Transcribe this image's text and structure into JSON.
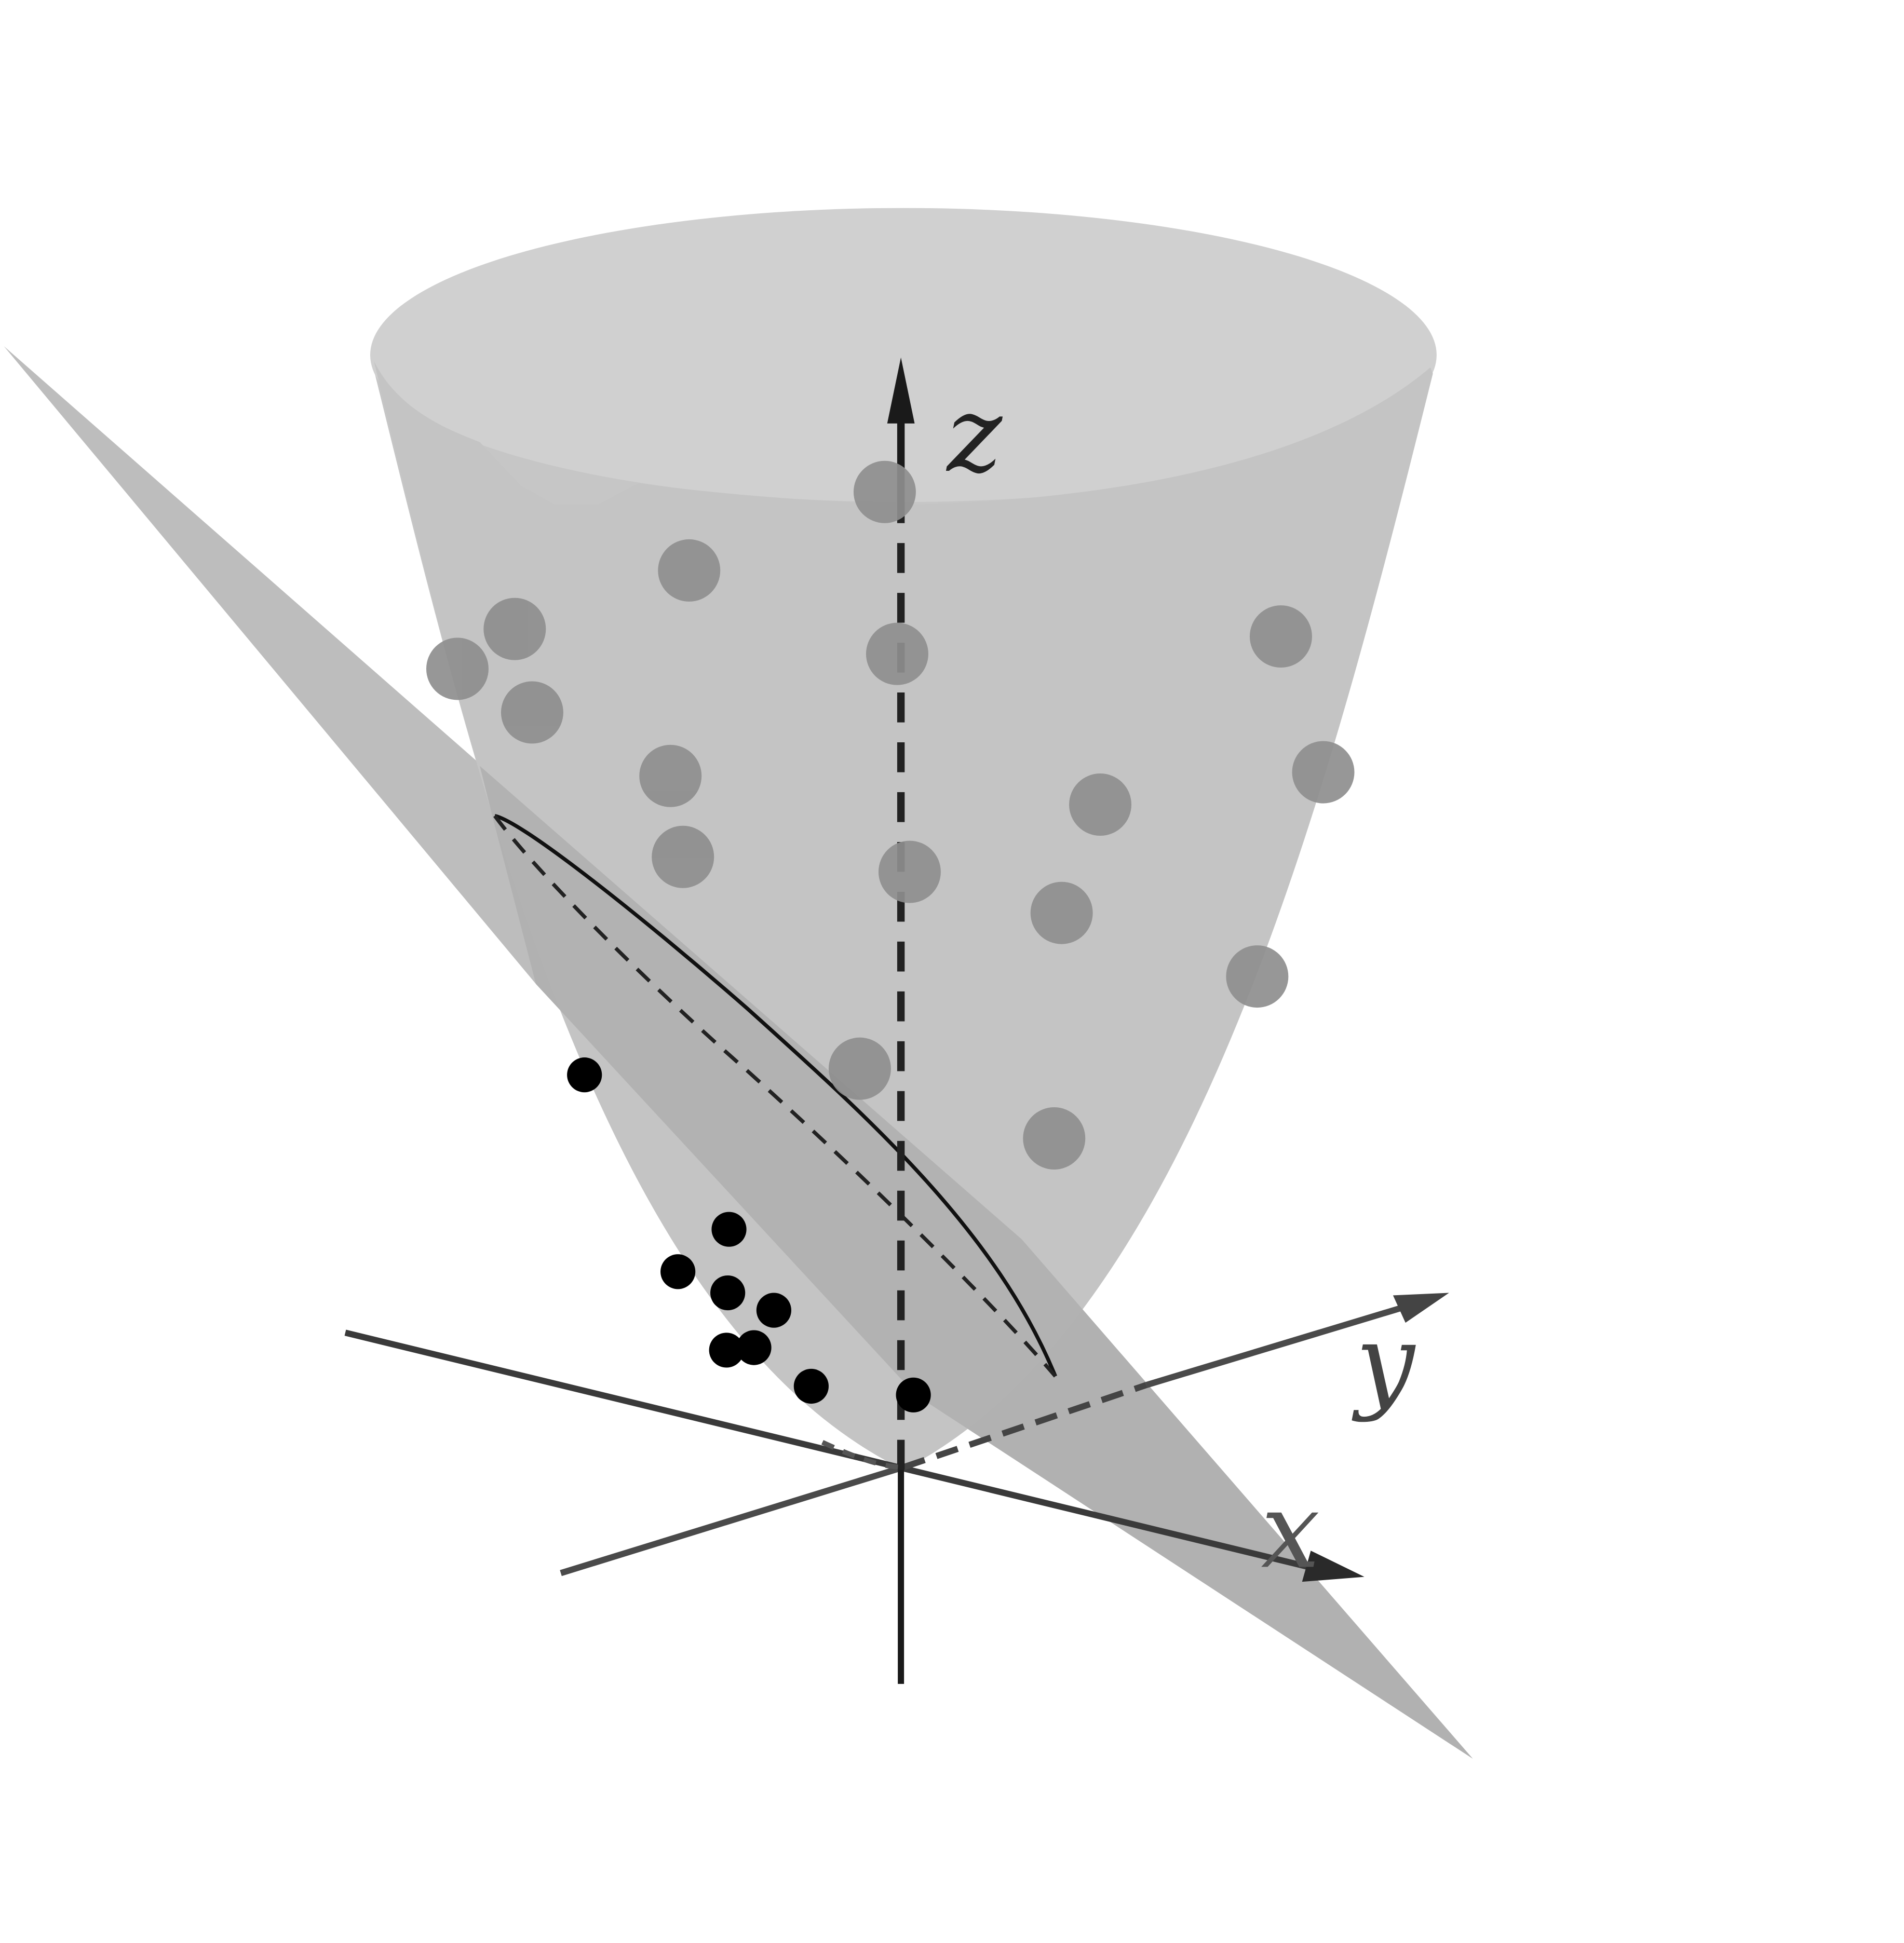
{
  "figure": {
    "axes": {
      "x_label": "x",
      "y_label": "y",
      "z_label": "z"
    },
    "colors": {
      "background": "#ffffff",
      "paraboloid_surface": "#c6c6c6",
      "paraboloid_top_cap": "#d0d0d0",
      "cutting_plane": "#bdbdbd",
      "interior_points": "#8e8e8e",
      "exterior_points": "#000000",
      "axis_dark": "#1a1a1a",
      "axis_gray": "#444444"
    },
    "icons": {
      "axis_arrowhead": "arrowhead-icon"
    }
  }
}
